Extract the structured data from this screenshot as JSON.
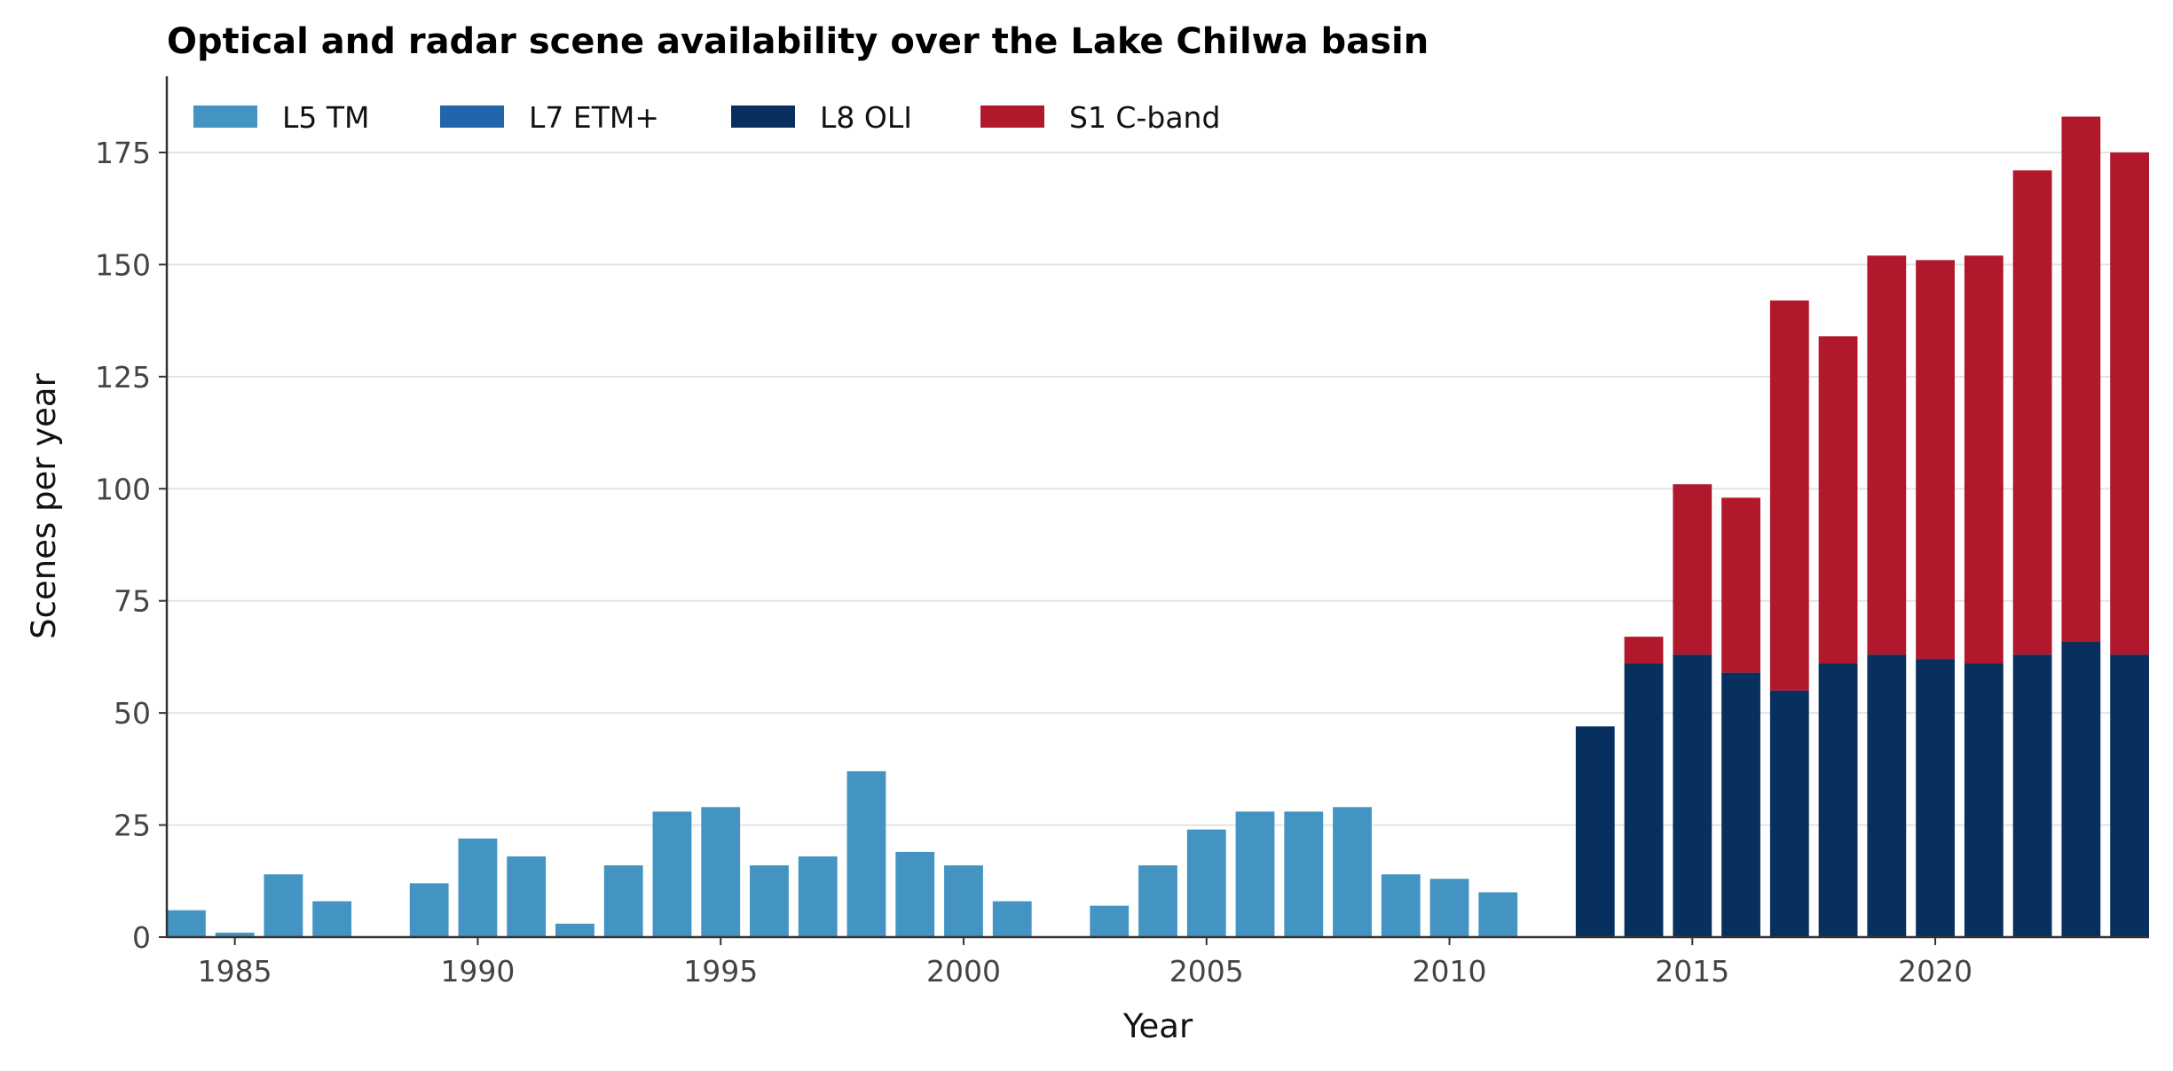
{
  "chart_data": {
    "type": "bar",
    "stacked": true,
    "title": "Optical and radar scene availability over the Lake Chilwa basin",
    "xlabel": "Year",
    "ylabel": "Scenes per year",
    "xlim": [
      1983.6,
      2024.4
    ],
    "ylim": [
      0,
      192
    ],
    "x_ticks": [
      1985,
      1990,
      1995,
      2000,
      2005,
      2010,
      2015,
      2020
    ],
    "x_tick_labels": [
      "1985",
      "1990",
      "1995",
      "2000",
      "2005",
      "2010",
      "2015",
      "2020"
    ],
    "y_ticks": [
      0,
      25,
      50,
      75,
      100,
      125,
      150,
      175
    ],
    "y_tick_labels": [
      "0",
      "25",
      "50",
      "75",
      "100",
      "125",
      "150",
      "175"
    ],
    "grid": "horizontal",
    "legend_position": "top-left",
    "categories": [
      1984,
      1985,
      1986,
      1987,
      1988,
      1989,
      1990,
      1991,
      1992,
      1993,
      1994,
      1995,
      1996,
      1997,
      1998,
      1999,
      2000,
      2001,
      2002,
      2003,
      2004,
      2005,
      2006,
      2007,
      2008,
      2009,
      2010,
      2011,
      2012,
      2013,
      2014,
      2015,
      2016,
      2017,
      2018,
      2019,
      2020,
      2021,
      2022,
      2023,
      2024
    ],
    "series": [
      {
        "name": "L5 TM",
        "color": "#4393c3",
        "values": [
          6,
          1,
          14,
          8,
          0,
          12,
          22,
          18,
          3,
          16,
          28,
          29,
          16,
          18,
          37,
          19,
          16,
          8,
          0,
          7,
          16,
          24,
          28,
          28,
          29,
          14,
          13,
          10,
          0,
          0,
          0,
          0,
          0,
          0,
          0,
          0,
          0,
          0,
          0,
          0,
          0
        ]
      },
      {
        "name": "L7 ETM+",
        "color": "#2166ac",
        "values": [
          0,
          0,
          0,
          0,
          0,
          0,
          0,
          0,
          0,
          0,
          0,
          0,
          0,
          0,
          0,
          0,
          0,
          0,
          0,
          0,
          0,
          0,
          0,
          0,
          0,
          0,
          0,
          0,
          0,
          0,
          0,
          0,
          0,
          0,
          0,
          0,
          0,
          0,
          0,
          0,
          0
        ]
      },
      {
        "name": "L8 OLI",
        "color": "#08305e",
        "values": [
          0,
          0,
          0,
          0,
          0,
          0,
          0,
          0,
          0,
          0,
          0,
          0,
          0,
          0,
          0,
          0,
          0,
          0,
          0,
          0,
          0,
          0,
          0,
          0,
          0,
          0,
          0,
          0,
          0,
          47,
          61,
          63,
          59,
          55,
          61,
          63,
          62,
          61,
          63,
          66,
          63
        ]
      },
      {
        "name": "S1 C-band",
        "color": "#b2182b",
        "values": [
          0,
          0,
          0,
          0,
          0,
          0,
          0,
          0,
          0,
          0,
          0,
          0,
          0,
          0,
          0,
          0,
          0,
          0,
          0,
          0,
          0,
          0,
          0,
          0,
          0,
          0,
          0,
          0,
          0,
          0,
          6,
          38,
          39,
          87,
          73,
          89,
          89,
          91,
          108,
          117,
          112
        ]
      }
    ]
  }
}
